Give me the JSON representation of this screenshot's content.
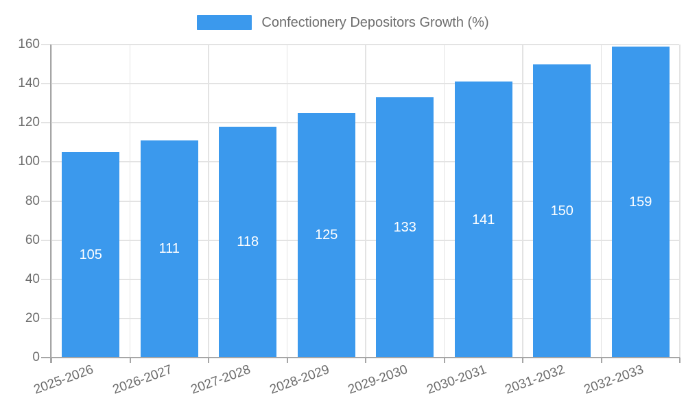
{
  "chart_data": {
    "type": "bar",
    "title": "Confectionery Depositors Growth (%)",
    "categories": [
      "2025-2026",
      "2026-2027",
      "2027-2028",
      "2028-2029",
      "2029-2030",
      "2030-2031",
      "2031-2032",
      "2032-2033"
    ],
    "values": [
      105,
      111,
      118,
      125,
      133,
      141,
      150,
      159
    ],
    "xlabel": "",
    "ylabel": "",
    "ylim": [
      0,
      160
    ],
    "ytick_step": 20,
    "yticks": [
      0,
      20,
      40,
      60,
      80,
      100,
      120,
      140,
      160
    ],
    "grid": true,
    "legend_position": "top",
    "value_label_position": "inside-center"
  },
  "colors": {
    "bar": "#3b99ed",
    "bar_value_label": "#ffffff",
    "axis_text": "#6d6d6d",
    "gridline": "#e3e3e3",
    "axis_line": "#a6a6a6",
    "background": "#ffffff"
  }
}
